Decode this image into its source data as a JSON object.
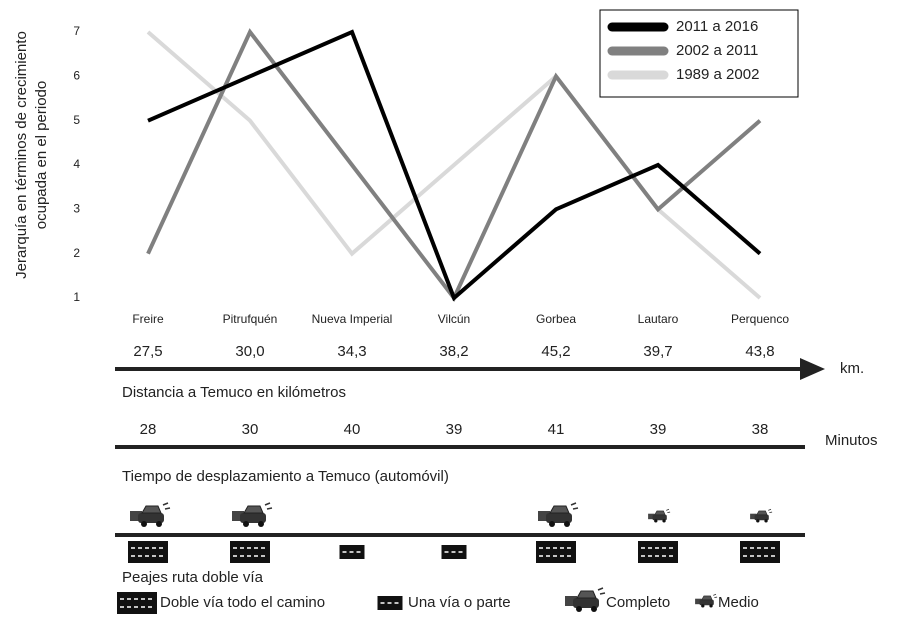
{
  "chart_data": {
    "type": "line",
    "y_label": [
      "Jerarquía en términos de crecimiento",
      "ocupada en el periodo"
    ],
    "categories": [
      "Freire",
      "Pitrufquén",
      "Nueva Imperial",
      "Vilcún",
      "Gorbea",
      "Lautaro",
      "Perquenco"
    ],
    "series": [
      {
        "name": "2011 a 2016",
        "color": "#000000",
        "values": [
          5,
          6,
          7,
          1,
          3,
          4,
          2
        ]
      },
      {
        "name": "2002 a 2011",
        "color": "#808080",
        "values": [
          2,
          7,
          4,
          1,
          6,
          3,
          5
        ]
      },
      {
        "name": "1989 a 2002",
        "color": "#d9d9d9",
        "values": [
          7,
          5,
          2,
          4,
          6,
          3,
          1
        ]
      }
    ],
    "ylim": [
      1,
      7
    ],
    "yticks": [
      1,
      2,
      3,
      4,
      5,
      6,
      7
    ],
    "grid": false,
    "legend": "upper right",
    "distance": {
      "labels": [
        "27,5",
        "30,0",
        "34,3",
        "38,2",
        "45,2",
        "39,7",
        "43,8"
      ],
      "unit": "km.",
      "caption": "Distancia a Temuco en kilómetros"
    },
    "time": {
      "values": [
        28,
        30,
        40,
        39,
        41,
        39,
        38
      ],
      "unit": "Minutos",
      "caption": "Tiempo de desplazamiento a Temuco (automóvil)"
    },
    "tolls": {
      "caption": "Peajes  ruta doble vía",
      "road": [
        "double",
        "double",
        "single",
        "single",
        "double",
        "double",
        "double"
      ],
      "traffic": [
        "full",
        "full",
        null,
        null,
        "full",
        "half",
        "half"
      ],
      "legend": {
        "double": "Doble vía todo el camino",
        "single": "Una vía o parte",
        "full": "Completo",
        "half": "Medio"
      }
    }
  }
}
